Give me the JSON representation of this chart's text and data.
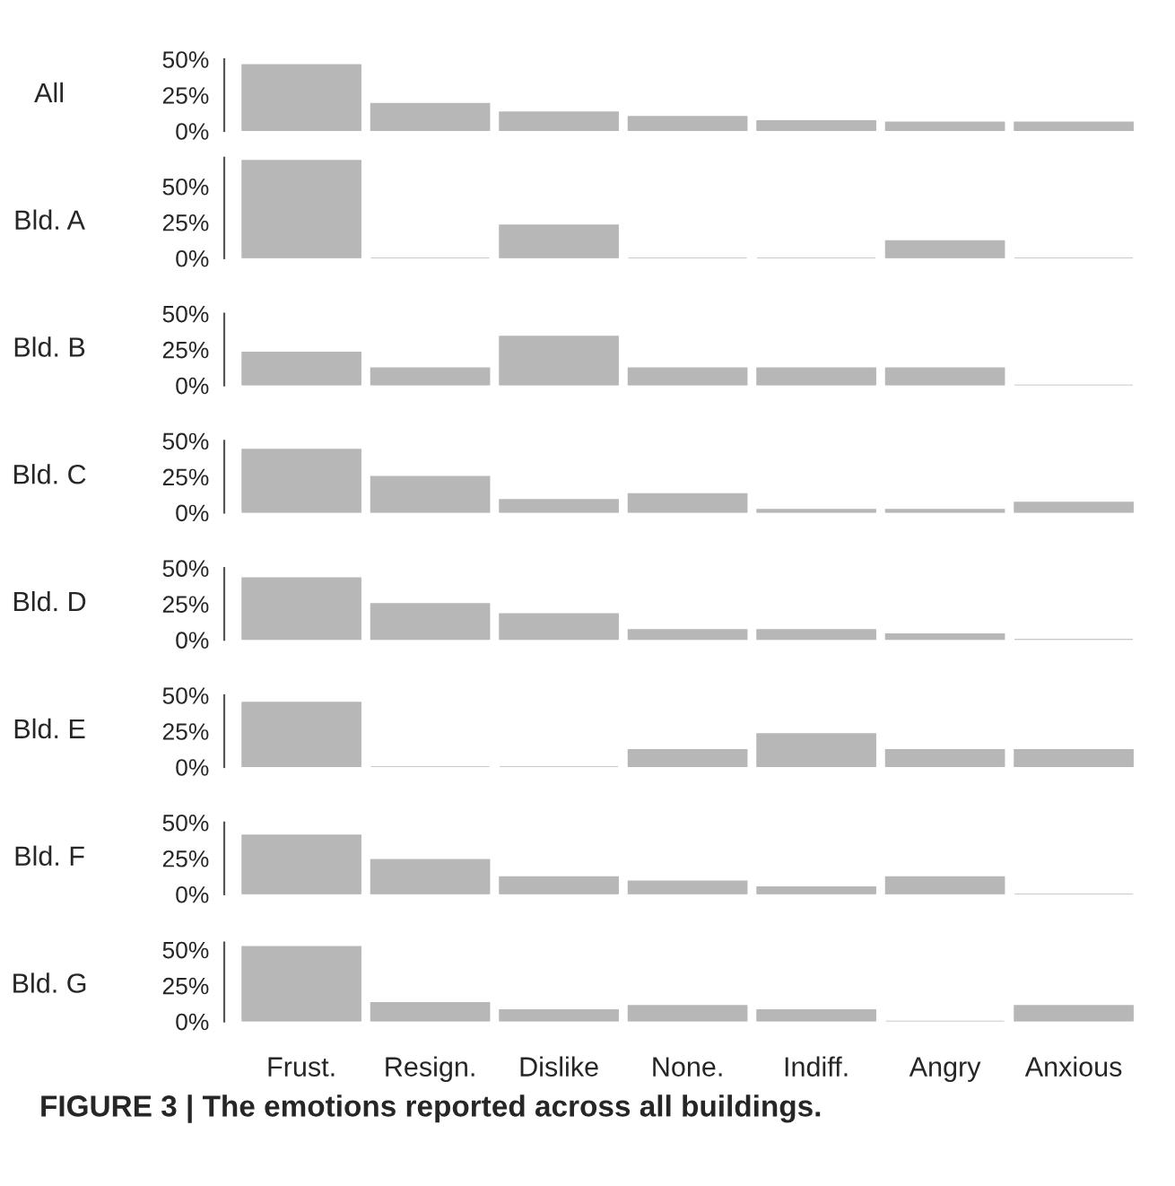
{
  "chart_data": [
    {
      "type": "bar",
      "title": "All",
      "values": [
        46,
        19,
        13,
        10,
        7,
        6,
        6
      ],
      "color": "#b7b7b7",
      "ylim": [
        0,
        50
      ],
      "yticks": [
        {
          "value": 0,
          "label": "0%"
        },
        {
          "value": 25,
          "label": "25%"
        },
        {
          "value": 50,
          "label": "50%"
        }
      ],
      "tick_labels": "y"
    },
    {
      "type": "bar",
      "title": "Bld. A",
      "values": [
        68,
        0,
        23,
        0,
        0,
        12,
        0
      ],
      "color": "#b7b7b7",
      "ylim": [
        0,
        70
      ],
      "yticks": [
        {
          "value": 0,
          "label": "0%"
        },
        {
          "value": 25,
          "label": "25%"
        },
        {
          "value": 50,
          "label": "50%"
        }
      ],
      "tick_labels": "y"
    },
    {
      "type": "bar",
      "title": "Bld. B",
      "values": [
        23,
        12,
        34,
        12,
        12,
        12,
        0
      ],
      "color": "#b7b7b7",
      "ylim": [
        0,
        50
      ],
      "yticks": [
        {
          "value": 0,
          "label": "0%"
        },
        {
          "value": 25,
          "label": "25%"
        },
        {
          "value": 50,
          "label": "50%"
        }
      ],
      "tick_labels": "y"
    },
    {
      "type": "bar",
      "title": "Bld. C",
      "values": [
        44,
        25,
        9,
        13,
        2,
        2,
        7
      ],
      "color": "#b7b7b7",
      "ylim": [
        0,
        50
      ],
      "yticks": [
        {
          "value": 0,
          "label": "0%"
        },
        {
          "value": 25,
          "label": "25%"
        },
        {
          "value": 50,
          "label": "50%"
        }
      ],
      "tick_labels": "y"
    },
    {
      "type": "bar",
      "title": "Bld. D",
      "values": [
        43,
        25,
        18,
        7,
        7,
        4,
        0
      ],
      "color": "#b7b7b7",
      "ylim": [
        0,
        50
      ],
      "yticks": [
        {
          "value": 0,
          "label": "0%"
        },
        {
          "value": 25,
          "label": "25%"
        },
        {
          "value": 50,
          "label": "50%"
        }
      ],
      "tick_labels": "y"
    },
    {
      "type": "bar",
      "title": "Bld. E",
      "values": [
        45,
        0,
        0,
        12,
        23,
        12,
        12
      ],
      "color": "#b7b7b7",
      "ylim": [
        0,
        50
      ],
      "yticks": [
        {
          "value": 0,
          "label": "0%"
        },
        {
          "value": 25,
          "label": "25%"
        },
        {
          "value": 50,
          "label": "50%"
        }
      ],
      "tick_labels": "y"
    },
    {
      "type": "bar",
      "title": "Bld. F",
      "values": [
        41,
        24,
        12,
        9,
        5,
        12,
        0
      ],
      "color": "#b7b7b7",
      "ylim": [
        0,
        50
      ],
      "yticks": [
        {
          "value": 0,
          "label": "0%"
        },
        {
          "value": 25,
          "label": "25%"
        },
        {
          "value": 50,
          "label": "50%"
        }
      ],
      "tick_labels": "y"
    },
    {
      "type": "bar",
      "title": "Bld. G",
      "categories": [
        "Frust.",
        "Resign.",
        "Dislike",
        "None.",
        "Indiff.",
        "Angry",
        "Anxious"
      ],
      "values": [
        52,
        13,
        8,
        11,
        8,
        0,
        11
      ],
      "color": "#b7b7b7",
      "ylim": [
        0,
        55
      ],
      "yticks": [
        {
          "value": 0,
          "label": "0%"
        },
        {
          "value": 25,
          "label": "25%"
        },
        {
          "value": 50,
          "label": "50%"
        }
      ],
      "annotations": [
        "FIGURE 3 | The emotions reported across all buildings."
      ]
    }
  ]
}
